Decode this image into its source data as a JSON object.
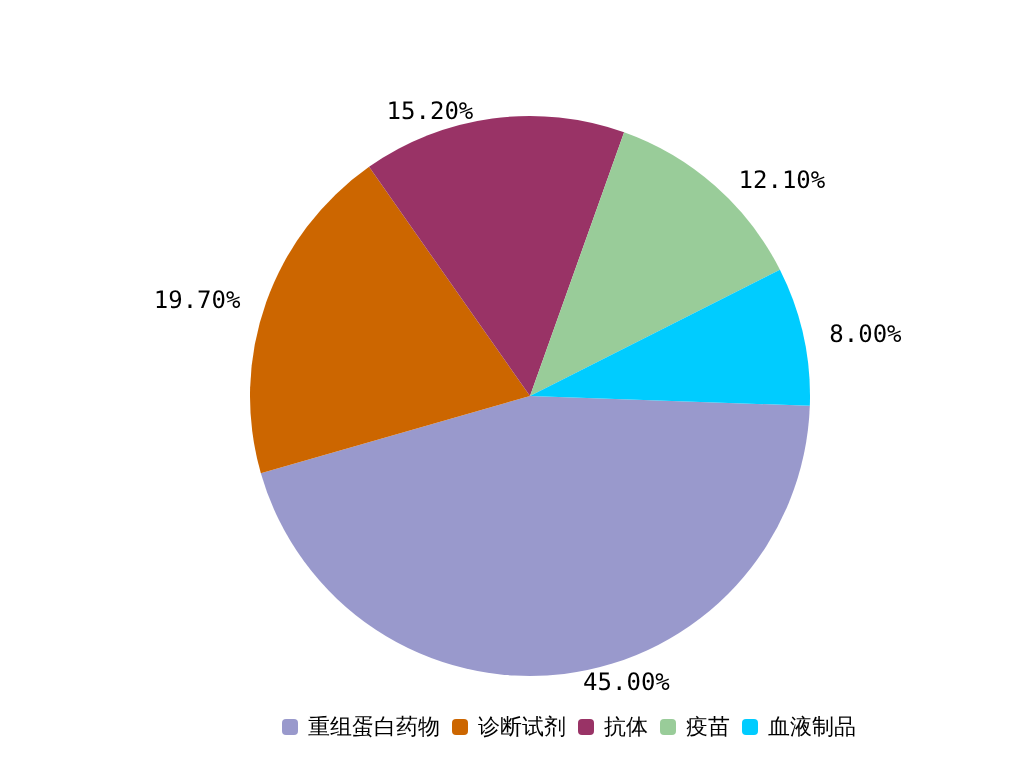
{
  "chart_data": {
    "type": "pie",
    "categories": [
      "重组蛋白药物",
      "诊断试剂",
      "抗体",
      "疫苗",
      "血液制品"
    ],
    "values": [
      45.0,
      19.7,
      15.2,
      12.1,
      8.0
    ],
    "colors": [
      "#9999cc",
      "#cc6600",
      "#993366",
      "#99cc99",
      "#00ccff"
    ],
    "value_labels": [
      "45.00%",
      "19.70%",
      "15.20%",
      "12.10%",
      "8.00%"
    ],
    "legend": "bottom"
  }
}
